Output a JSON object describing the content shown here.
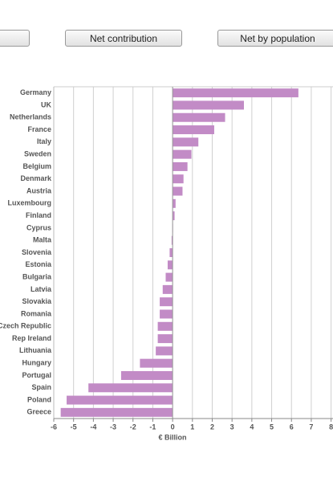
{
  "buttons": [
    "Net contribution",
    "Net by population"
  ],
  "chart_data": {
    "type": "hbar",
    "x_label": "€ Billion",
    "categories": [
      "Germany",
      "UK",
      "Netherlands",
      "France",
      "Italy",
      "Sweden",
      "Belgium",
      "Denmark",
      "Austria",
      "Luxembourg",
      "Finland",
      "Cyprus",
      "Malta",
      "Slovenia",
      "Estonia",
      "Bulgaria",
      "Latvia",
      "Slovakia",
      "Romania",
      "Czech Republic",
      "Rep Ireland",
      "Lithuania",
      "Hungary",
      "Portugal",
      "Spain",
      "Poland",
      "Greece"
    ],
    "values": [
      6.35,
      3.6,
      2.65,
      2.1,
      1.3,
      0.95,
      0.75,
      0.55,
      0.5,
      0.15,
      0.1,
      0.02,
      -0.05,
      -0.15,
      -0.25,
      -0.35,
      -0.5,
      -0.65,
      -0.65,
      -0.75,
      -0.75,
      -0.85,
      -1.65,
      -2.6,
      -4.25,
      -5.35,
      -5.65
    ],
    "color": "#c28bc6",
    "xlim": [
      -6,
      8
    ],
    "xticks": [
      -6,
      -5,
      -4,
      -3,
      -2,
      -1,
      0,
      1,
      2,
      3,
      4,
      5,
      6,
      7,
      8
    ],
    "grid": true
  }
}
